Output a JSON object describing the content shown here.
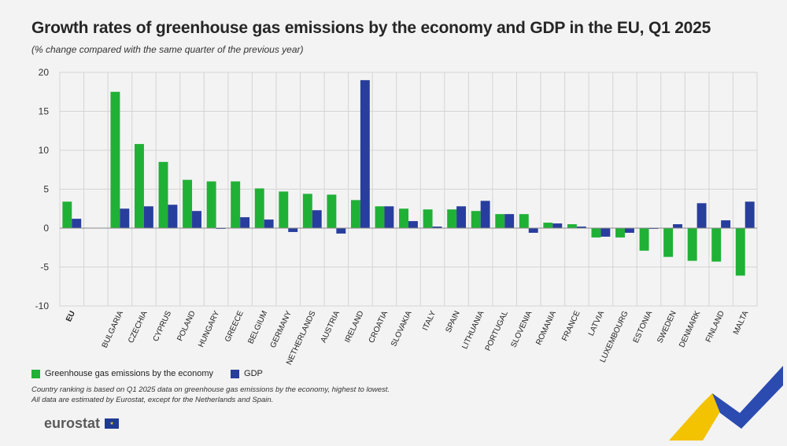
{
  "title": "Growth rates of greenhouse gas emissions by the economy and GDP in the EU, Q1 2025",
  "subtitle": "(% change compared with the same quarter of the previous year)",
  "legend": {
    "ghg": "Greenhouse gas emissions by the economy",
    "gdp": "GDP"
  },
  "notes": {
    "line1": "Country ranking is based on Q1 2025 data on greenhouse gas emissions by the economy, highest to lowest.",
    "line2": "All data are estimated by Eurostat, except for the Netherlands and Spain."
  },
  "logo_text": "eurostat",
  "colors": {
    "ghg": "#1fb135",
    "gdp": "#283e9c",
    "grid": "#d4d4d4",
    "background": "#f3f3f3",
    "accent_yellow": "#f3c200",
    "accent_blue": "#2b4bb0"
  },
  "chart_data": {
    "type": "bar",
    "categories": [
      "EU",
      "BULGARIA",
      "CZECHIA",
      "CYPRUS",
      "POLAND",
      "HUNGARY",
      "GREECE",
      "BELGIUM",
      "GERMANY",
      "NETHERLANDS",
      "AUSTRIA",
      "IRELAND",
      "CROATIA",
      "SLOVAKIA",
      "ITALY",
      "SPAIN",
      "LITHUANIA",
      "PORTUGAL",
      "SLOVENIA",
      "ROMANIA",
      "FRANCE",
      "LATVIA",
      "LUXEMBOURG",
      "ESTONIA",
      "SWEDEN",
      "DENMARK",
      "FINLAND",
      "MALTA"
    ],
    "series": [
      {
        "name": "Greenhouse gas emissions by the economy",
        "values": [
          3.4,
          17.5,
          10.8,
          8.5,
          6.2,
          6.0,
          6.0,
          5.1,
          4.7,
          4.4,
          4.3,
          3.6,
          2.8,
          2.5,
          2.4,
          2.4,
          2.2,
          1.8,
          1.8,
          0.7,
          0.5,
          -1.2,
          -1.2,
          -2.9,
          -3.7,
          -4.2,
          -4.3,
          -6.1
        ]
      },
      {
        "name": "GDP",
        "values": [
          1.2,
          2.5,
          2.8,
          3.0,
          2.2,
          -0.1,
          1.4,
          1.1,
          -0.5,
          2.3,
          -0.7,
          19.0,
          2.8,
          0.9,
          0.2,
          2.8,
          3.5,
          1.8,
          -0.6,
          0.6,
          0.2,
          -1.1,
          -0.6,
          -0.1,
          0.5,
          3.2,
          1.0,
          3.4
        ]
      }
    ],
    "ylim": [
      -10,
      20
    ],
    "yticks": [
      -10,
      -5,
      0,
      5,
      10,
      15,
      20
    ],
    "grid": true,
    "legend_position": "bottom-left"
  }
}
